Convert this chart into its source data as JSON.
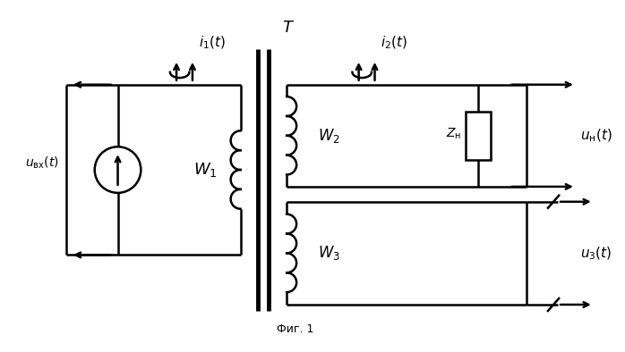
{
  "title": "Фиг. 1",
  "background_color": "#ffffff",
  "line_color": "#000000",
  "fig_width": 6.98,
  "fig_height": 3.94,
  "dpi": 100,
  "lw": 1.8
}
